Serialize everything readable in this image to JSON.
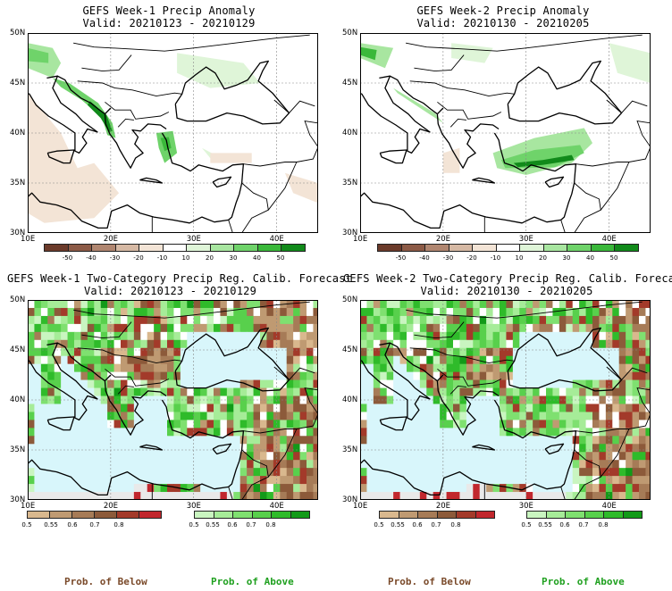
{
  "panels": [
    {
      "title": "GEFS Week-1 Precip Anomaly",
      "valid": "Valid: 20210123 - 20210129",
      "kind": "anomaly",
      "week": 1
    },
    {
      "title": "GEFS Week-2 Precip Anomaly",
      "valid": "Valid: 20210130 - 20210205",
      "kind": "anomaly",
      "week": 2
    },
    {
      "title": "GEFS Week-1 Two-Category Precip Reg. Calib. Forecast",
      "valid": "Valid: 20210123 - 20210129",
      "kind": "prob",
      "week": 1
    },
    {
      "title": "GEFS Week-2 Two-Category Precip Reg. Calib. Forecast",
      "valid": "Valid: 20210130 - 20210205",
      "kind": "prob",
      "week": 2
    }
  ],
  "axes": {
    "lat_labels": [
      "50N",
      "45N",
      "40N",
      "35N",
      "30N"
    ],
    "lon_labels": [
      "10E",
      "20E",
      "30E",
      "40E"
    ]
  },
  "anomaly_colorbar": {
    "labels": [
      "-50",
      "-40",
      "-30",
      "-20",
      "-10",
      "10",
      "20",
      "30",
      "40",
      "50"
    ],
    "colors": [
      "#6b3a2a",
      "#8c5a46",
      "#b08670",
      "#d6b9a4",
      "#f3e4d6",
      "#ffffff",
      "#dff5d8",
      "#a8e6a0",
      "#6fd36a",
      "#3ab83a",
      "#118a1a"
    ]
  },
  "prob_below_colorbar": {
    "labels": [
      "0.5",
      "0.55",
      "0.6",
      "0.7",
      "0.8"
    ],
    "colors": [
      "#d9b88e",
      "#bf9a72",
      "#a67b57",
      "#8c5a3a",
      "#a33a2a",
      "#c1272d"
    ],
    "caption": "Prob. of Below",
    "caption_color": "#7a4a2a"
  },
  "prob_above_colorbar": {
    "labels": [
      "0.5",
      "0.55",
      "0.6",
      "0.7",
      "0.8"
    ],
    "colors": [
      "#c9f5c0",
      "#a6ec98",
      "#7fe070",
      "#58d04c",
      "#2fbb2a",
      "#129a18"
    ],
    "caption": "Prob. of Above",
    "caption_color": "#1fa01f"
  }
}
